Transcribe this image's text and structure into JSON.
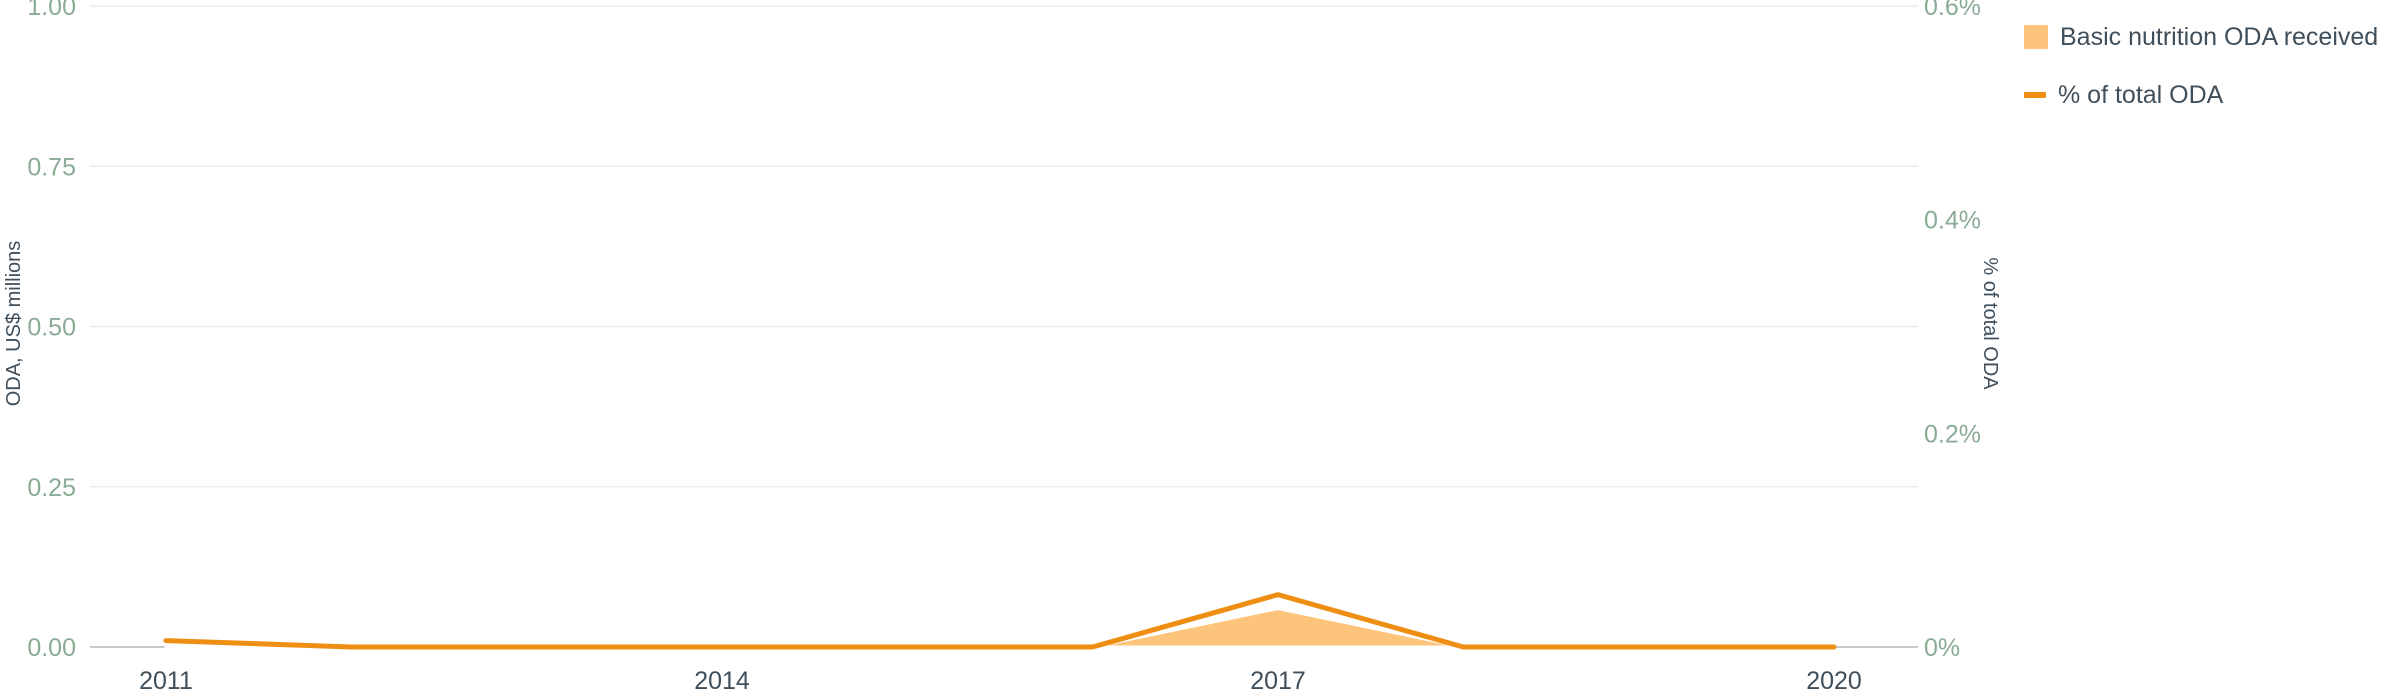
{
  "chart_data": {
    "type": "area",
    "title": "",
    "x": [
      2011,
      2012,
      2013,
      2014,
      2015,
      2016,
      2017,
      2018,
      2019,
      2020
    ],
    "xticks": [
      2011,
      2014,
      2017,
      2020
    ],
    "series": [
      {
        "name": "Basic nutrition ODA received",
        "type": "area",
        "axis": "left",
        "color": "#fdc57c",
        "values": [
          0.005,
          0,
          0,
          0,
          0,
          0,
          0.06,
          0,
          0,
          0
        ]
      },
      {
        "name": "% of total ODA",
        "type": "line",
        "axis": "right",
        "color": "#ee8e12",
        "values": [
          0.006,
          0,
          0,
          0,
          0,
          0,
          0.049,
          0,
          0,
          0
        ]
      }
    ],
    "y_left": {
      "label": "ODA, US$ millions",
      "range": [
        0,
        1
      ],
      "ticks": [
        "0.00",
        "0.25",
        "0.50",
        "0.75",
        "1.00"
      ]
    },
    "y_right": {
      "label": "% of total ODA",
      "range": [
        0,
        0.6
      ],
      "ticks": [
        "0%",
        "0.2%",
        "0.4%",
        "0.6%"
      ]
    },
    "grid": true,
    "legend_position": "top-right"
  }
}
